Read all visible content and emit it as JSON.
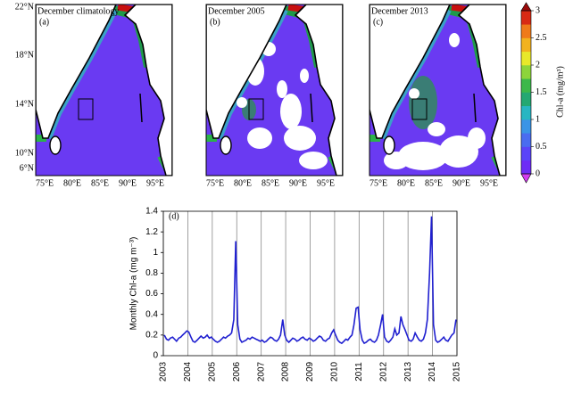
{
  "maps": {
    "panels": [
      {
        "title": "December climatology",
        "label": "(a)"
      },
      {
        "title": "December 2005",
        "label": "(b)"
      },
      {
        "title": "December 2013",
        "label": "(c)"
      }
    ],
    "lon_labels": [
      "75°E",
      "80°E",
      "85°E",
      "90°E",
      "95°E"
    ],
    "lat_labels": [
      "22°N",
      "18°N",
      "14°N",
      "10°N",
      "6°N"
    ]
  },
  "chart_data": [
    {
      "type": "colorbar",
      "label": "Chl-a (mg/m³)",
      "ylim": [
        0,
        3
      ],
      "yticks": [
        0,
        0.5,
        1,
        1.5,
        2,
        2.5,
        3
      ]
    },
    {
      "type": "line",
      "panel_label": "(d)",
      "ylabel": "Monthly Chl-a (mg m⁻³)",
      "color": "#1f1fd0",
      "xlim": [
        2003,
        2015
      ],
      "xticks": [
        2003,
        2004,
        2005,
        2006,
        2007,
        2008,
        2009,
        2010,
        2011,
        2012,
        2013,
        2014,
        2015
      ],
      "ylim": [
        0,
        1.4
      ],
      "yticks": [
        0,
        0.2,
        0.4,
        0.6,
        0.8,
        1,
        1.2,
        1.4
      ],
      "grid_x": true,
      "x": [
        2003.04,
        2003.13,
        2003.21,
        2003.29,
        2003.38,
        2003.46,
        2003.54,
        2003.63,
        2003.71,
        2003.79,
        2003.88,
        2003.96,
        2004.04,
        2004.13,
        2004.21,
        2004.29,
        2004.38,
        2004.46,
        2004.54,
        2004.63,
        2004.71,
        2004.79,
        2004.88,
        2004.96,
        2005.04,
        2005.13,
        2005.21,
        2005.29,
        2005.38,
        2005.46,
        2005.54,
        2005.63,
        2005.71,
        2005.79,
        2005.88,
        2005.96,
        2006.04,
        2006.13,
        2006.21,
        2006.29,
        2006.38,
        2006.46,
        2006.54,
        2006.63,
        2006.71,
        2006.79,
        2006.88,
        2006.96,
        2007.04,
        2007.13,
        2007.21,
        2007.29,
        2007.38,
        2007.46,
        2007.54,
        2007.63,
        2007.71,
        2007.79,
        2007.88,
        2007.96,
        2008.04,
        2008.13,
        2008.21,
        2008.29,
        2008.38,
        2008.46,
        2008.54,
        2008.63,
        2008.71,
        2008.79,
        2008.88,
        2008.96,
        2009.04,
        2009.13,
        2009.21,
        2009.29,
        2009.38,
        2009.46,
        2009.54,
        2009.63,
        2009.71,
        2009.79,
        2009.88,
        2009.96,
        2010.04,
        2010.13,
        2010.21,
        2010.29,
        2010.38,
        2010.46,
        2010.54,
        2010.63,
        2010.71,
        2010.79,
        2010.88,
        2010.96,
        2011.04,
        2011.13,
        2011.21,
        2011.29,
        2011.38,
        2011.46,
        2011.54,
        2011.63,
        2011.71,
        2011.79,
        2011.88,
        2011.96,
        2012.04,
        2012.13,
        2012.21,
        2012.29,
        2012.38,
        2012.46,
        2012.54,
        2012.63,
        2012.71,
        2012.79,
        2012.88,
        2012.96,
        2013.04,
        2013.13,
        2013.21,
        2013.29,
        2013.38,
        2013.46,
        2013.54,
        2013.63,
        2013.71,
        2013.79,
        2013.88,
        2013.96,
        2014.04,
        2014.13,
        2014.21,
        2014.29,
        2014.38,
        2014.46,
        2014.54,
        2014.63,
        2014.71,
        2014.79,
        2014.88,
        2014.96
      ],
      "values": [
        0.2,
        0.16,
        0.15,
        0.17,
        0.18,
        0.16,
        0.14,
        0.17,
        0.18,
        0.2,
        0.22,
        0.24,
        0.23,
        0.18,
        0.14,
        0.13,
        0.15,
        0.17,
        0.19,
        0.17,
        0.18,
        0.2,
        0.17,
        0.18,
        0.16,
        0.14,
        0.13,
        0.14,
        0.16,
        0.18,
        0.17,
        0.19,
        0.2,
        0.22,
        0.35,
        1.11,
        0.3,
        0.16,
        0.13,
        0.14,
        0.15,
        0.17,
        0.16,
        0.18,
        0.17,
        0.16,
        0.15,
        0.14,
        0.15,
        0.13,
        0.14,
        0.16,
        0.18,
        0.17,
        0.15,
        0.14,
        0.16,
        0.2,
        0.35,
        0.2,
        0.15,
        0.13,
        0.15,
        0.17,
        0.16,
        0.14,
        0.15,
        0.17,
        0.18,
        0.16,
        0.15,
        0.17,
        0.16,
        0.14,
        0.15,
        0.17,
        0.19,
        0.18,
        0.15,
        0.14,
        0.16,
        0.17,
        0.22,
        0.25,
        0.2,
        0.15,
        0.13,
        0.12,
        0.14,
        0.16,
        0.15,
        0.18,
        0.2,
        0.3,
        0.46,
        0.47,
        0.25,
        0.15,
        0.12,
        0.13,
        0.15,
        0.16,
        0.14,
        0.13,
        0.15,
        0.2,
        0.3,
        0.4,
        0.18,
        0.14,
        0.13,
        0.15,
        0.18,
        0.26,
        0.2,
        0.22,
        0.38,
        0.3,
        0.25,
        0.2,
        0.15,
        0.14,
        0.16,
        0.22,
        0.18,
        0.15,
        0.14,
        0.16,
        0.22,
        0.35,
        0.8,
        1.35,
        0.3,
        0.15,
        0.13,
        0.14,
        0.16,
        0.18,
        0.15,
        0.14,
        0.17,
        0.2,
        0.22,
        0.35
      ]
    }
  ]
}
